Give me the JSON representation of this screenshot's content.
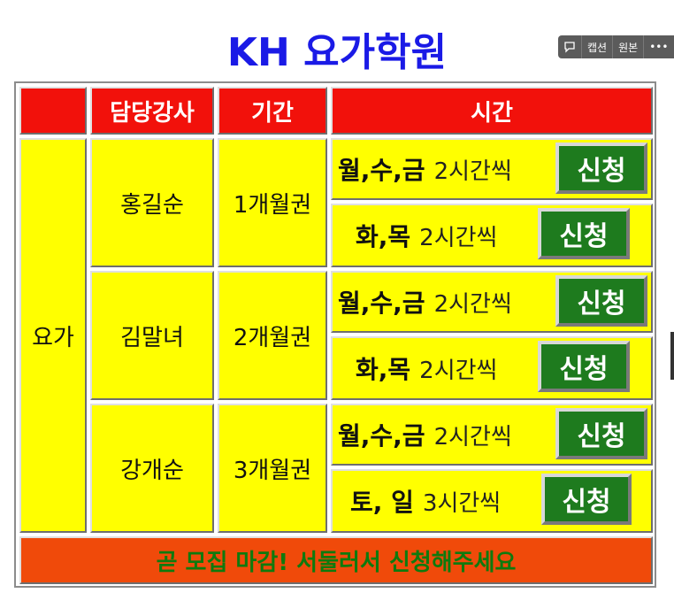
{
  "title": "KH 요가학원",
  "toolbar": {
    "comment_icon": "comment-icon",
    "caption_label": "캡션",
    "original_label": "원본",
    "more_label": "•••"
  },
  "table": {
    "headers": [
      "",
      "담당강사",
      "기간",
      "시간"
    ],
    "course": "요가",
    "rows": [
      {
        "instructor": "홍길순",
        "period": "1개월권",
        "slots": [
          {
            "days": "월,수,금",
            "hours": "2시간씩",
            "button": "신청"
          },
          {
            "days": "화,목",
            "hours": "2시간씩",
            "button": "신청"
          }
        ]
      },
      {
        "instructor": "김말녀",
        "period": "2개월권",
        "slots": [
          {
            "days": "월,수,금",
            "hours": "2시간씩",
            "button": "신청"
          },
          {
            "days": "화,목",
            "hours": "2시간씩",
            "button": "신청"
          }
        ]
      },
      {
        "instructor": "강개순",
        "period": "3개월권",
        "slots": [
          {
            "days": "월,수,금",
            "hours": "2시간씩",
            "button": "신청"
          },
          {
            "days": "토, 일",
            "hours": "3시간씩",
            "button": "신청"
          }
        ]
      }
    ],
    "footer": "곧 모집 마감! 서둘러서 신청해주세요"
  },
  "colors": {
    "title": "#1a1ae6",
    "header_bg": "#f2110b",
    "cell_bg": "#ffff00",
    "button_bg": "#1e7b1e",
    "footer_bg": "#f04a0a",
    "footer_text": "#0e7a0e"
  }
}
